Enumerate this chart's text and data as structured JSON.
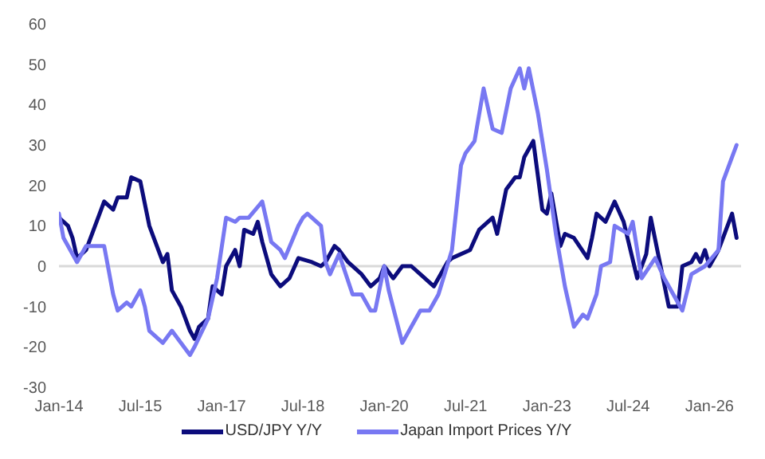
{
  "chart_data": {
    "type": "line",
    "xlim": [
      "2014-01",
      "2026-08"
    ],
    "xticks": [
      {
        "value": "2014-01",
        "label": "Jan-14"
      },
      {
        "value": "2015-07",
        "label": "Jul-15"
      },
      {
        "value": "2017-01",
        "label": "Jan-17"
      },
      {
        "value": "2018-07",
        "label": "Jul-18"
      },
      {
        "value": "2020-01",
        "label": "Jan-20"
      },
      {
        "value": "2021-07",
        "label": "Jul-21"
      },
      {
        "value": "2023-01",
        "label": "Jan-23"
      },
      {
        "value": "2024-07",
        "label": "Jul-24"
      },
      {
        "value": "2026-01",
        "label": "Jan-26"
      }
    ],
    "ylim": [
      -30,
      60
    ],
    "yticks": [
      -30,
      -20,
      -10,
      0,
      10,
      20,
      30,
      40,
      50,
      60
    ],
    "grid": false,
    "legend": "bottom",
    "marker": "none",
    "line_style": "solid",
    "ref_lines": [
      {
        "axis": "y",
        "value": 0,
        "color": "#d9d9d9"
      }
    ],
    "series": [
      {
        "name": "USD/JPY Y/Y",
        "color": "#0c0c7c",
        "x": [
          "2014-01",
          "2014-03",
          "2014-04",
          "2014-05",
          "2014-06",
          "2014-07",
          "2014-10",
          "2014-11",
          "2015-01",
          "2015-02",
          "2015-04",
          "2015-05",
          "2015-07",
          "2015-09",
          "2015-10",
          "2015-12",
          "2016-01",
          "2016-02",
          "2016-04",
          "2016-06",
          "2016-07",
          "2016-08",
          "2016-10",
          "2016-11",
          "2017-01",
          "2017-02",
          "2017-04",
          "2017-05",
          "2017-06",
          "2017-08",
          "2017-09",
          "2017-10",
          "2017-12",
          "2018-02",
          "2018-04",
          "2018-06",
          "2018-09",
          "2018-11",
          "2018-12",
          "2019-02",
          "2019-03",
          "2019-05",
          "2019-08",
          "2019-10",
          "2019-12",
          "2020-01",
          "2020-03",
          "2020-05",
          "2020-07",
          "2020-09",
          "2020-12",
          "2021-03",
          "2021-04",
          "2021-08",
          "2021-10",
          "2022-01",
          "2022-02",
          "2022-04",
          "2022-06",
          "2022-07",
          "2022-08",
          "2022-10",
          "2022-12",
          "2023-01",
          "2023-02",
          "2023-04",
          "2023-05",
          "2023-07",
          "2023-10",
          "2023-11",
          "2023-12",
          "2024-02",
          "2024-04",
          "2024-06",
          "2024-09",
          "2024-10",
          "2024-11",
          "2024-12",
          "2025-02",
          "2025-04",
          "2025-06",
          "2025-07",
          "2025-09",
          "2025-10",
          "2025-11",
          "2025-12",
          "2026-01",
          "2026-03",
          "2026-05",
          "2026-06",
          "2026-07"
        ],
        "values": [
          12,
          10,
          7,
          2,
          3,
          4,
          13,
          16,
          14,
          17,
          17,
          22,
          21,
          10,
          7,
          1,
          3,
          -6,
          -10,
          -16,
          -18,
          -15,
          -13,
          -5,
          -7,
          0,
          4,
          0,
          9,
          8,
          11,
          6,
          -2,
          -5,
          -3,
          2,
          1,
          0,
          1,
          5,
          4,
          1,
          -2,
          -5,
          -3,
          0,
          -3,
          0,
          0,
          -2,
          -5,
          1,
          2,
          4,
          9,
          12,
          8,
          19,
          22,
          22,
          27,
          31,
          14,
          13,
          18,
          5,
          8,
          7,
          2,
          7,
          13,
          11,
          16,
          11,
          -3,
          0,
          3,
          12,
          1,
          -10,
          -10,
          0,
          1,
          3,
          1,
          4,
          0,
          4,
          10,
          13,
          7
        ]
      },
      {
        "name": "Japan Import Prices Y/Y",
        "color": "#7878f2",
        "x": [
          "2014-01",
          "2014-02",
          "2014-05",
          "2014-07",
          "2014-09",
          "2014-11",
          "2015-01",
          "2015-02",
          "2015-04",
          "2015-05",
          "2015-07",
          "2015-08",
          "2015-09",
          "2015-12",
          "2016-02",
          "2016-04",
          "2016-06",
          "2016-07",
          "2016-10",
          "2016-12",
          "2017-02",
          "2017-04",
          "2017-05",
          "2017-07",
          "2017-10",
          "2017-12",
          "2018-02",
          "2018-03",
          "2018-06",
          "2018-07",
          "2018-08",
          "2018-11",
          "2018-12",
          "2019-01",
          "2019-03",
          "2019-06",
          "2019-08",
          "2019-10",
          "2019-11",
          "2020-01",
          "2020-02",
          "2020-05",
          "2020-07",
          "2020-09",
          "2020-11",
          "2021-01",
          "2021-04",
          "2021-06",
          "2021-07",
          "2021-09",
          "2021-11",
          "2022-01",
          "2022-03",
          "2022-05",
          "2022-07",
          "2022-08",
          "2022-09",
          "2022-11",
          "2023-01",
          "2023-03",
          "2023-05",
          "2023-07",
          "2023-09",
          "2023-10",
          "2023-12",
          "2024-01",
          "2024-03",
          "2024-04",
          "2024-07",
          "2024-08",
          "2024-10",
          "2025-01",
          "2025-03",
          "2025-05",
          "2025-07",
          "2025-09",
          "2025-12",
          "2026-03",
          "2026-04",
          "2026-06",
          "2026-07"
        ],
        "values": [
          13,
          7,
          1,
          5,
          5,
          5,
          -7,
          -11,
          -9,
          -10,
          -6,
          -10,
          -16,
          -19,
          -16,
          -19,
          -22,
          -20,
          -13,
          -3,
          12,
          11,
          12,
          12,
          16,
          6,
          4,
          2,
          10,
          12,
          13,
          10,
          1,
          -2,
          3,
          -7,
          -7,
          -11,
          -11,
          0,
          -6,
          -19,
          -15,
          -11,
          -11,
          -7,
          4,
          25,
          28,
          31,
          44,
          34,
          33,
          44,
          49,
          44,
          49,
          38,
          24,
          8,
          -5,
          -15,
          -12,
          -13,
          -7,
          0,
          1,
          10,
          8,
          11,
          -3,
          2,
          -3,
          -7,
          -11,
          -2,
          0,
          4,
          21,
          27,
          30
        ]
      }
    ]
  }
}
